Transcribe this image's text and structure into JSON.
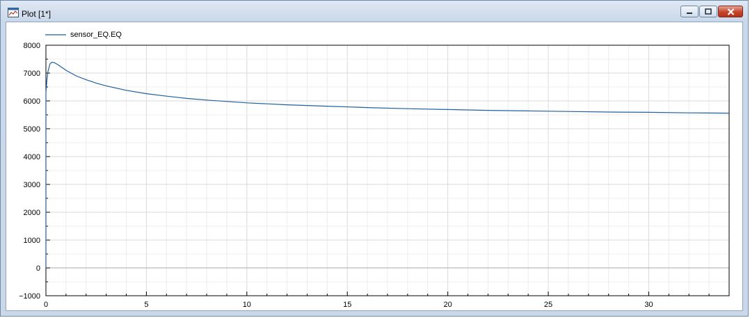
{
  "window": {
    "title": "Plot [1*]",
    "icon": "plot-window-icon",
    "buttons": [
      "minimize-icon",
      "maximize-icon",
      "close-icon"
    ]
  },
  "chart_data": {
    "type": "line",
    "title": "",
    "xlabel": "",
    "ylabel": "",
    "xlim": [
      0,
      34
    ],
    "ylim": [
      -1000,
      8000
    ],
    "xticks": [
      0,
      5,
      10,
      15,
      20,
      25,
      30
    ],
    "yticks": [
      -1000,
      0,
      1000,
      2000,
      3000,
      4000,
      5000,
      6000,
      7000,
      8000
    ],
    "grid": true,
    "legend_position": "top-left",
    "series": [
      {
        "name": "sensor_EQ.EQ",
        "color": "#1f5fa0",
        "x": [
          0,
          0.05,
          0.1,
          0.2,
          0.3,
          0.4,
          0.5,
          0.6,
          0.8,
          1,
          1.5,
          2,
          2.5,
          3,
          4,
          5,
          6,
          7,
          8,
          9,
          10,
          12,
          14,
          16,
          18,
          20,
          22,
          24,
          26,
          28,
          30,
          32,
          34
        ],
        "y": [
          6300,
          6750,
          7050,
          7330,
          7390,
          7380,
          7340,
          7300,
          7200,
          7100,
          6900,
          6760,
          6640,
          6540,
          6380,
          6260,
          6170,
          6090,
          6030,
          5980,
          5930,
          5860,
          5810,
          5760,
          5720,
          5690,
          5660,
          5640,
          5620,
          5600,
          5590,
          5570,
          5560
        ]
      }
    ]
  }
}
